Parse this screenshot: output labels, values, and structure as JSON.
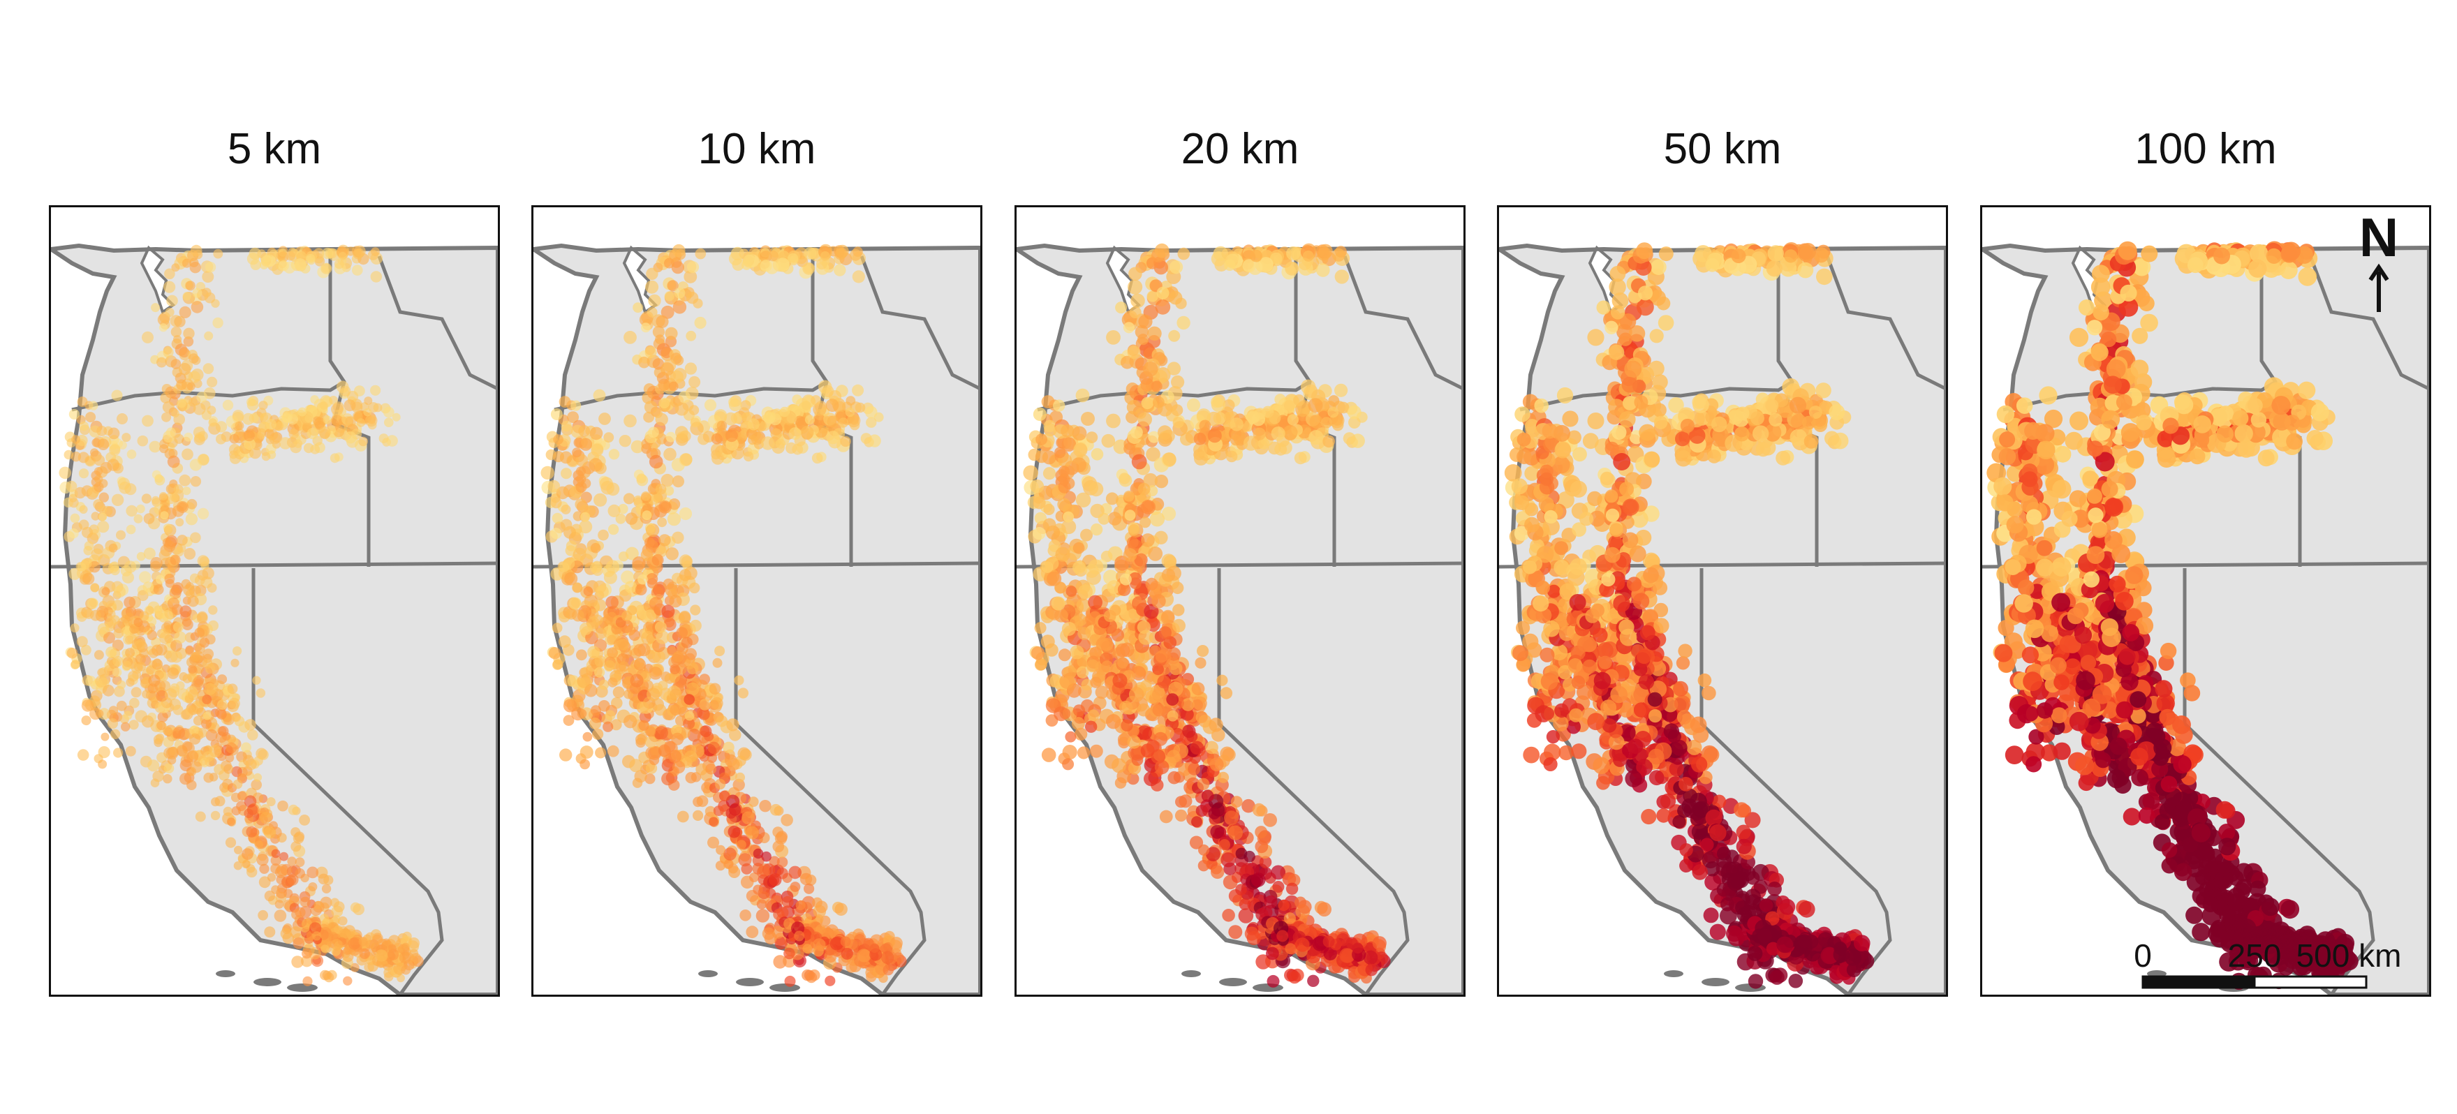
{
  "panels": [
    {
      "title": "5 km",
      "intensity": 0.15
    },
    {
      "title": "10 km",
      "intensity": 0.3
    },
    {
      "title": "20 km",
      "intensity": 0.48
    },
    {
      "title": "50 km",
      "intensity": 0.75
    },
    {
      "title": "100 km",
      "intensity": 1.0
    }
  ],
  "north_arrow": {
    "label": "N"
  },
  "scale_bar": {
    "labels": [
      "0",
      "250",
      "500 km"
    ]
  },
  "colors": {
    "land": "#e3e3e3",
    "borders": "#7a7a7a",
    "ramp": [
      "#fff2b2",
      "#fed976",
      "#feb24c",
      "#fd8d3c",
      "#f03b20",
      "#bd0026",
      "#800026"
    ]
  }
}
